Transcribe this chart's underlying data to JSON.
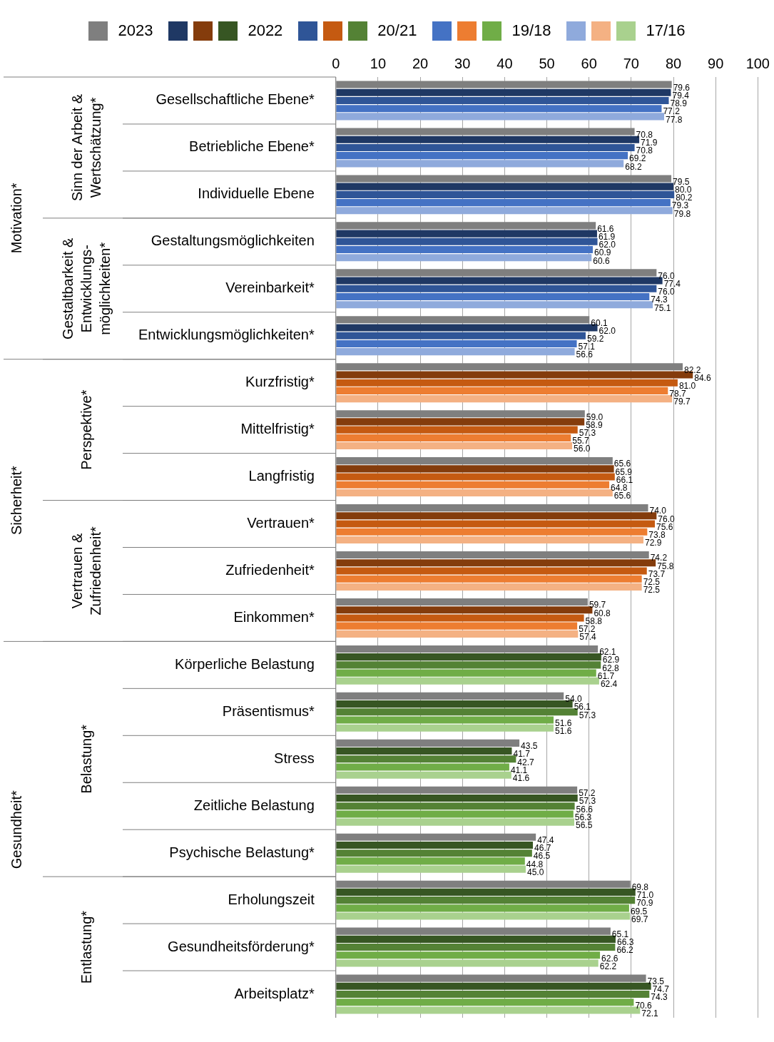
{
  "chart_data": {
    "type": "bar",
    "orientation": "horizontal",
    "legend": "top",
    "grid": "x",
    "categories": [
      "Gesellschaftliche Ebene*",
      "Betriebliche Ebene*",
      "Individuelle Ebene",
      "Gestaltungsmöglichkeiten",
      "Vereinbarkeit*",
      "Entwicklungsmöglichkeiten*",
      "Kurzfristig*",
      "Mittelfristig*",
      "Langfristig",
      "Vertrauen*",
      "Zufriedenheit*",
      "Einkommen*",
      "Körperliche Belastung",
      "Präsentismus*",
      "Stress",
      "Zeitliche Belastung",
      "Psychische Belastung*",
      "Erholungszeit",
      "Gesundheitsförderung*",
      "Arbeitsplatz*"
    ],
    "xlim": [
      0,
      100
    ],
    "xticks": [
      0,
      10,
      20,
      30,
      40,
      50,
      60,
      70,
      80,
      90,
      100
    ],
    "annotations": [
      "Motivation*",
      "Sicherheit*",
      "Gesundheit*",
      "Sinn der Arbeit &\nWertschätzung*",
      "Gestaltbarkeit &\nEntwicklungs-\nmöglichkeiten*",
      "Perspektive*",
      "Vertrauen &\nZufriedenheit*",
      "Belastung*",
      "Entlastung*"
    ],
    "series": [
      {
        "name": "2023",
        "colors": [
          "#7f7f7f",
          "#7f7f7f",
          "#7f7f7f",
          "#7f7f7f",
          "#7f7f7f",
          "#7f7f7f",
          "#7f7f7f",
          "#7f7f7f",
          "#7f7f7f",
          "#7f7f7f",
          "#7f7f7f",
          "#7f7f7f",
          "#7f7f7f",
          "#7f7f7f",
          "#7f7f7f",
          "#7f7f7f",
          "#7f7f7f",
          "#7f7f7f",
          "#7f7f7f",
          "#7f7f7f"
        ],
        "values": [
          79.6,
          70.8,
          79.5,
          61.6,
          76.0,
          60.1,
          82.2,
          59.0,
          65.6,
          74.0,
          74.2,
          59.7,
          62.1,
          54.0,
          43.5,
          57.2,
          47.4,
          69.8,
          65.1,
          73.5
        ],
        "value_labels": [
          "79.6",
          "70.8",
          "79.5",
          "61.6",
          "76.0",
          "60.1",
          "82.2",
          "59.0",
          "65.6",
          "74.0",
          "74.2",
          "59.7",
          "62.1",
          "54.0",
          "43.5",
          "57.2",
          "47.4",
          "69.8",
          "65.1",
          "73.5"
        ]
      },
      {
        "name": "2022",
        "colors": [
          "#1f3864",
          "#1f3864",
          "#1f3864",
          "#1f3864",
          "#1f3864",
          "#1f3864",
          "#843c0c",
          "#843c0c",
          "#843c0c",
          "#843c0c",
          "#843c0c",
          "#843c0c",
          "#375623",
          "#375623",
          "#375623",
          "#375623",
          "#375623",
          "#375623",
          "#375623",
          "#375623"
        ],
        "values": [
          79.4,
          71.9,
          80.0,
          61.9,
          77.4,
          62.0,
          84.6,
          58.9,
          65.9,
          76.0,
          75.8,
          60.8,
          62.9,
          56.1,
          41.7,
          57.3,
          46.7,
          71.0,
          66.3,
          74.7
        ],
        "value_labels": [
          "79.4",
          "71.9",
          "80.0",
          "61.9",
          "77.4",
          "62.0",
          "84.6",
          "58.9",
          "65.9",
          "76.0",
          "75.8",
          "60.8",
          "62.9",
          "56.1",
          "41.7",
          "57.3",
          "46.7",
          "71.0",
          "66.3",
          "74.7"
        ]
      },
      {
        "name": "20/21",
        "colors": [
          "#2f5597",
          "#2f5597",
          "#2f5597",
          "#2f5597",
          "#2f5597",
          "#2f5597",
          "#c55a11",
          "#c55a11",
          "#c55a11",
          "#c55a11",
          "#c55a11",
          "#c55a11",
          "#548235",
          "#548235",
          "#548235",
          "#548235",
          "#548235",
          "#548235",
          "#548235",
          "#548235"
        ],
        "values": [
          78.9,
          70.8,
          80.2,
          62.0,
          76.0,
          59.2,
          81.0,
          57.3,
          66.1,
          75.6,
          73.7,
          58.8,
          62.8,
          57.3,
          42.7,
          56.6,
          46.5,
          70.9,
          66.2,
          74.3
        ],
        "value_labels": [
          "78.9",
          "70.8",
          "80.2",
          "62.0",
          "76.0",
          "59.2",
          "81.0",
          "57.3",
          "66.1",
          "75.6",
          "73.7",
          "58.8",
          "62.8",
          "57.3",
          "42.7",
          "56.6",
          "46.5",
          "70.9",
          "66.2",
          "74.3"
        ]
      },
      {
        "name": "19/18",
        "colors": [
          "#4472c4",
          "#4472c4",
          "#4472c4",
          "#4472c4",
          "#4472c4",
          "#4472c4",
          "#ed7d31",
          "#ed7d31",
          "#ed7d31",
          "#ed7d31",
          "#ed7d31",
          "#ed7d31",
          "#70ad47",
          "#70ad47",
          "#70ad47",
          "#70ad47",
          "#70ad47",
          "#70ad47",
          "#70ad47",
          "#70ad47"
        ],
        "values": [
          77.2,
          69.2,
          79.3,
          60.9,
          74.3,
          57.1,
          78.7,
          55.7,
          64.8,
          73.8,
          72.5,
          57.2,
          61.7,
          51.6,
          41.1,
          56.3,
          44.8,
          69.5,
          62.6,
          70.6
        ],
        "value_labels": [
          "77.2",
          "69.2",
          "79.3",
          "60.9",
          "74.3",
          "57.1",
          "78.7",
          "55.7",
          "64.8",
          "73.8",
          "72.5",
          "57.2",
          "61.7",
          "51.6",
          "41.1",
          "56.3",
          "44.8",
          "69.5",
          "62.6",
          "70.6"
        ]
      },
      {
        "name": "17/16",
        "colors": [
          "#8faadc",
          "#8faadc",
          "#8faadc",
          "#8faadc",
          "#8faadc",
          "#8faadc",
          "#f4b183",
          "#f4b183",
          "#f4b183",
          "#f4b183",
          "#f4b183",
          "#f4b183",
          "#a9d18e",
          "#a9d18e",
          "#a9d18e",
          "#a9d18e",
          "#a9d18e",
          "#a9d18e",
          "#a9d18e",
          "#a9d18e"
        ],
        "values": [
          77.8,
          68.2,
          79.8,
          60.6,
          75.1,
          56.6,
          79.7,
          56.0,
          65.6,
          72.9,
          72.5,
          57.4,
          62.4,
          51.6,
          41.6,
          56.5,
          45.0,
          69.7,
          62.2,
          72.1
        ],
        "value_labels": [
          "77.8",
          "68.2",
          "79.8",
          "60.6",
          "75.1",
          "56.6",
          "79.7",
          "56.0",
          "65.6",
          "72.9",
          "72.5",
          "57.4",
          "62.4",
          "51.6",
          "41.6",
          "56.5",
          "45.0",
          "69.7",
          "62.2",
          "72.1"
        ]
      }
    ]
  }
}
